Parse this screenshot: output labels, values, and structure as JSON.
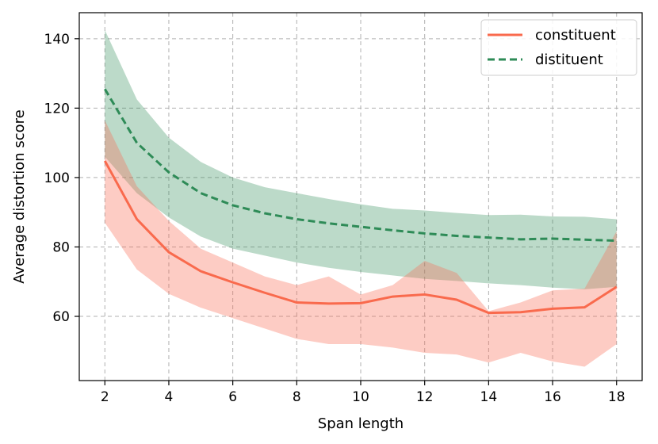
{
  "chart_data": {
    "type": "line",
    "title": "",
    "xlabel": "Span length",
    "ylabel": "Average distortion score",
    "xlim": [
      1.2,
      18.8
    ],
    "ylim": [
      41.5,
      147.5
    ],
    "xticks": [
      2,
      4,
      6,
      8,
      10,
      12,
      14,
      16,
      18
    ],
    "yticks": [
      60,
      80,
      100,
      120,
      140
    ],
    "grid": true,
    "legend_position": "top-right",
    "x": [
      2,
      3,
      4,
      5,
      6,
      7,
      8,
      9,
      10,
      11,
      12,
      13,
      14,
      15,
      16,
      17,
      18
    ],
    "series": [
      {
        "name": "constituent",
        "color": "#f96a4d",
        "line_style": "solid",
        "values": [
          104.8,
          88.0,
          78.5,
          73.0,
          69.8,
          66.8,
          64.0,
          63.7,
          63.8,
          65.7,
          66.3,
          64.8,
          61.0,
          61.2,
          62.2,
          62.6,
          68.5
        ],
        "band_upper": [
          116.5,
          97.5,
          87.5,
          79.5,
          75.5,
          71.5,
          69.0,
          71.5,
          66.3,
          69.0,
          76.0,
          72.5,
          61.5,
          64.0,
          67.5,
          68.0,
          84.5
        ],
        "band_lower": [
          87.0,
          73.5,
          66.5,
          62.5,
          59.5,
          56.5,
          53.5,
          52.0,
          52.0,
          51.0,
          49.5,
          49.0,
          46.7,
          49.5,
          47.0,
          45.5,
          52.0
        ]
      },
      {
        "name": "distituent",
        "color": "#2e8b57",
        "line_style": "dashed",
        "values": [
          125.5,
          110.0,
          101.5,
          95.5,
          92.0,
          89.7,
          88.0,
          86.8,
          85.8,
          84.8,
          83.9,
          83.2,
          82.7,
          82.2,
          82.4,
          82.1,
          81.8
        ],
        "band_upper": [
          142.5,
          122.5,
          111.5,
          104.5,
          100.0,
          97.2,
          95.5,
          93.8,
          92.3,
          91.0,
          90.5,
          89.8,
          89.2,
          89.3,
          88.8,
          88.7,
          88.0
        ],
        "band_lower": [
          106.0,
          95.5,
          88.5,
          83.0,
          79.5,
          77.5,
          75.5,
          74.0,
          72.8,
          71.8,
          70.8,
          70.2,
          69.5,
          69.0,
          68.3,
          67.8,
          68.5
        ]
      }
    ]
  }
}
